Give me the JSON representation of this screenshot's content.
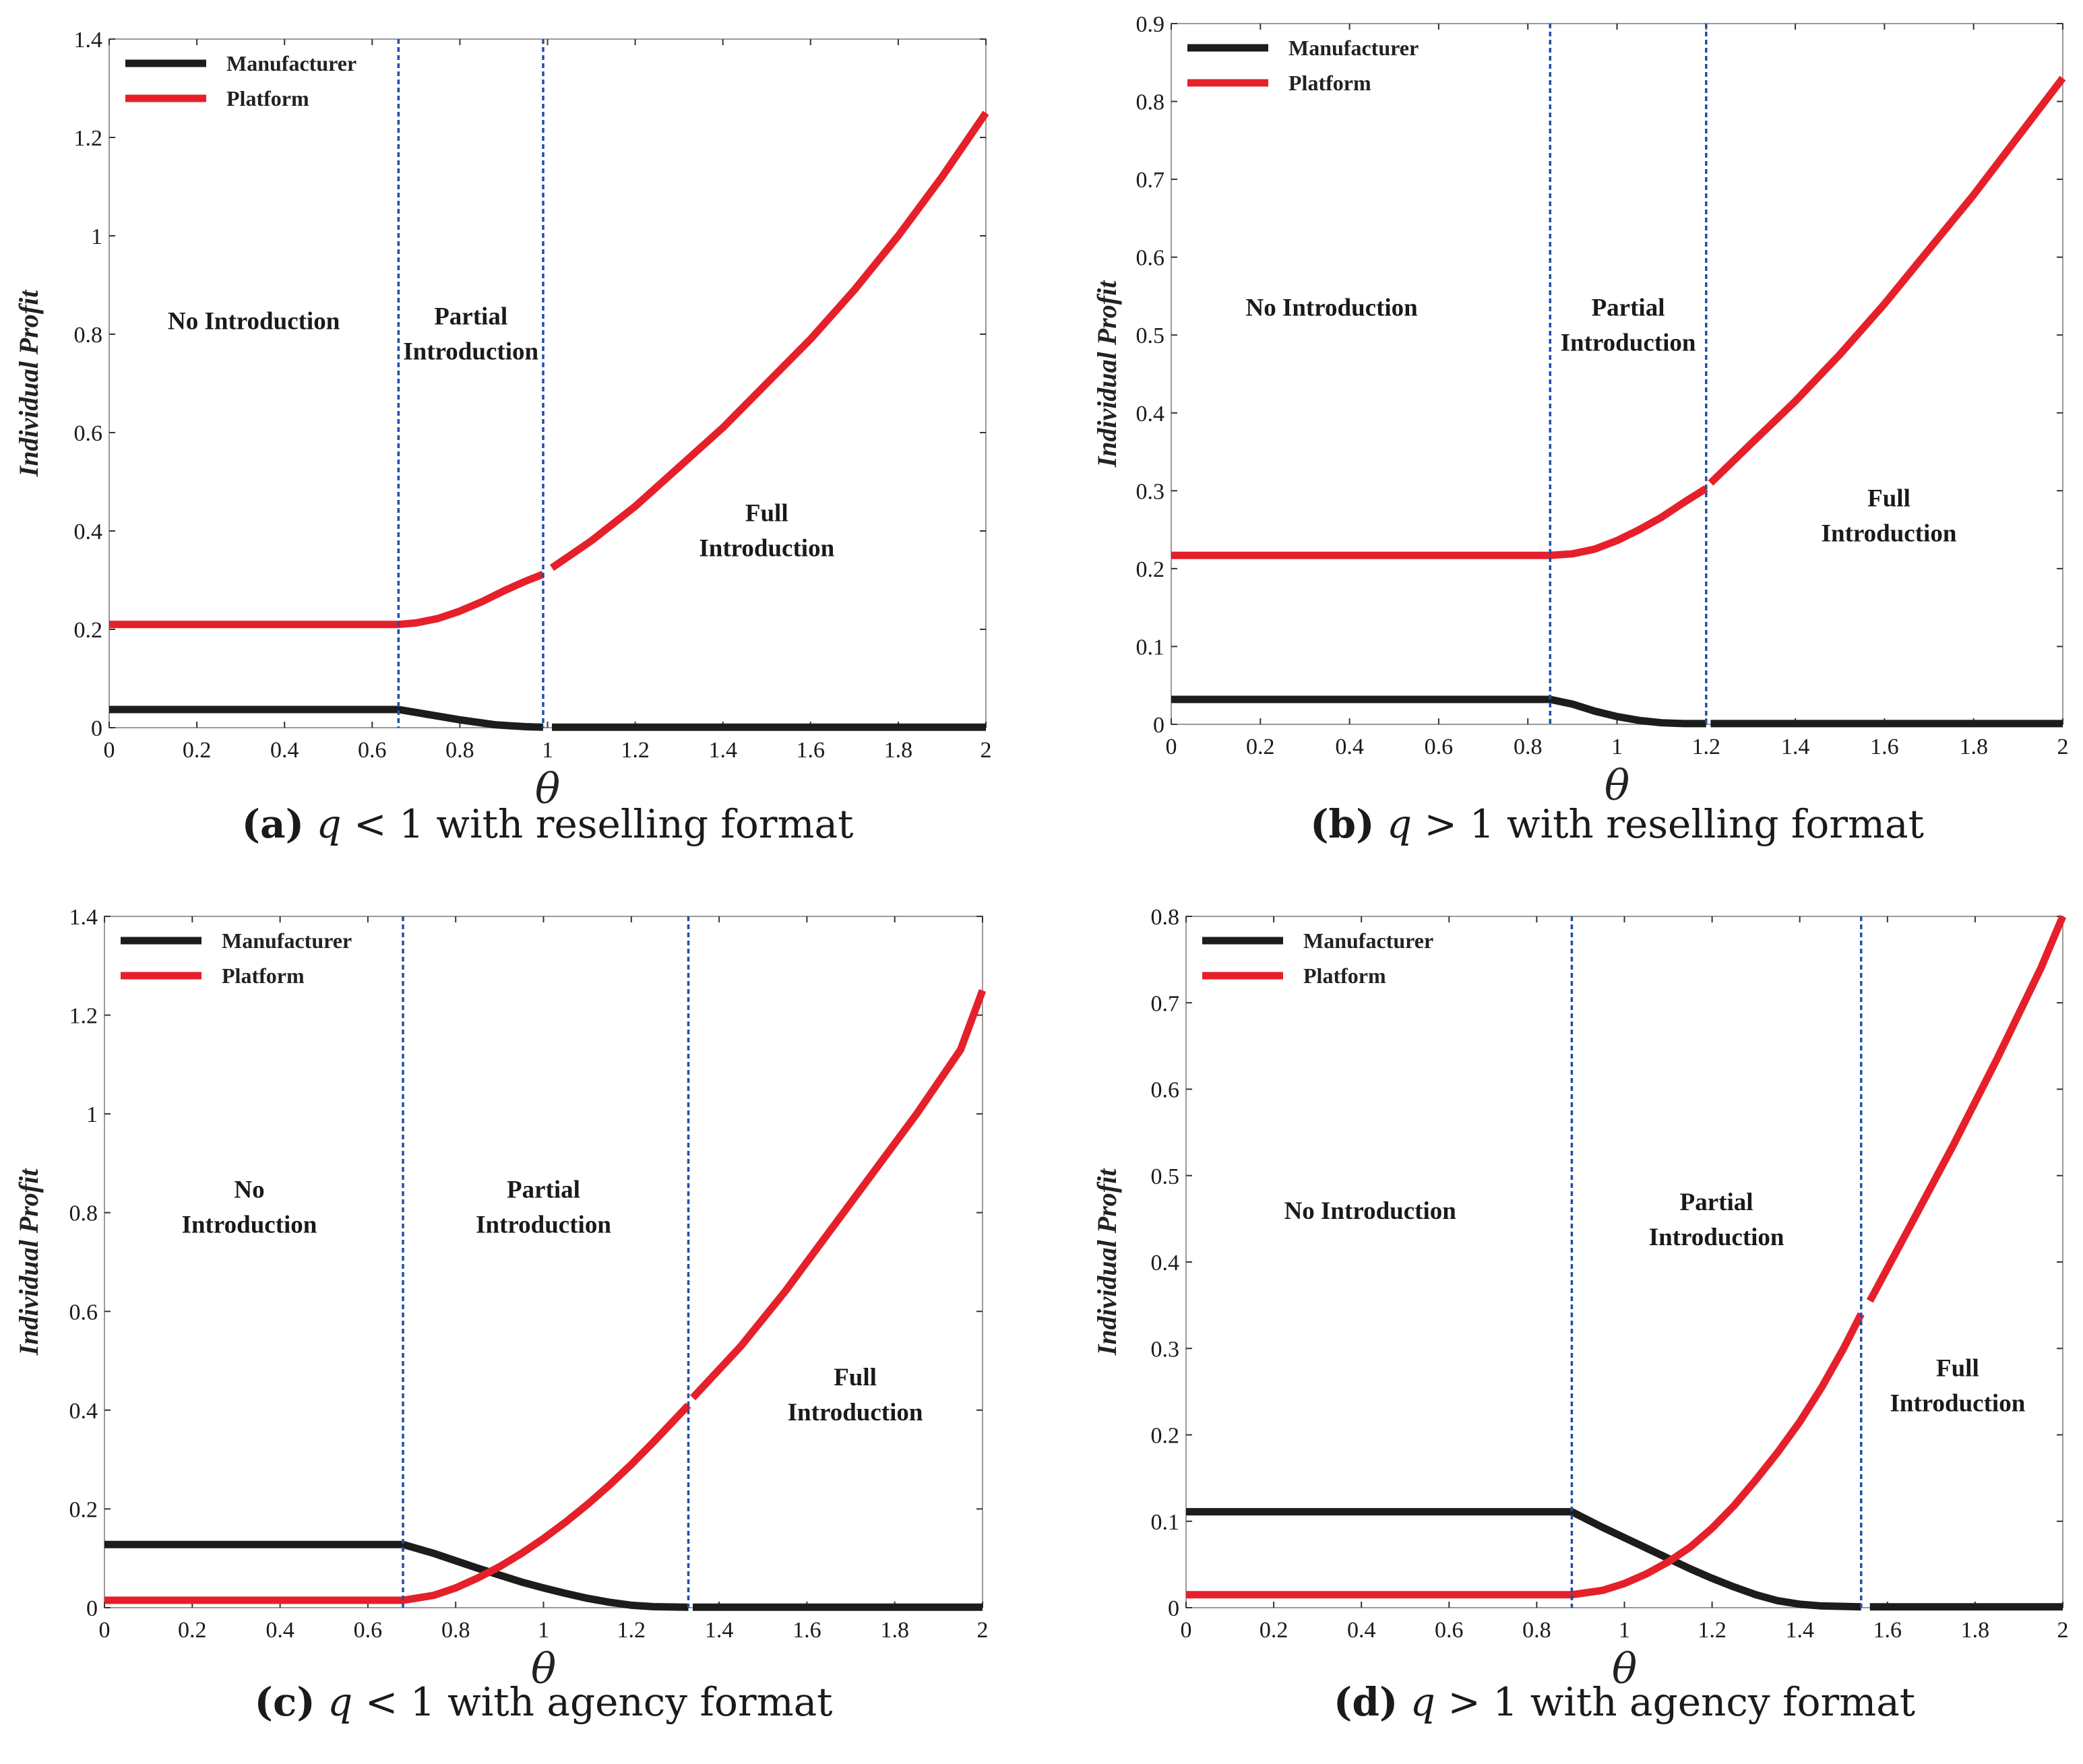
{
  "figure": {
    "legend_labels": [
      "Manufacturer",
      "Platform"
    ],
    "series_colors": {
      "manufacturer": "#1c1c1c",
      "platform": "#e5202a",
      "boundary": "#1f4fa8"
    },
    "xlabel": "θ",
    "ylabel": "Individual  Profit"
  },
  "chart_data": [
    {
      "id": "a",
      "type": "line",
      "caption": {
        "letter": "(a)",
        "q": "q",
        "relation": "< 1 with reselling format"
      },
      "xlim": [
        0,
        2
      ],
      "ylim": [
        0,
        1.4
      ],
      "xticks": [
        "0",
        "0.2",
        "0.4",
        "0.6",
        "0.8",
        "1",
        "1.2",
        "1.4",
        "1.6",
        "1.8",
        "2"
      ],
      "yticks": [
        "0",
        "0.2",
        "0.4",
        "0.6",
        "0.8",
        "1",
        "1.2",
        "1.4"
      ],
      "boundaries": [
        0.66,
        0.99
      ],
      "regions": [
        {
          "lines": [
            "No Introduction"
          ],
          "x": 0.33,
          "y": 0.81
        },
        {
          "lines": [
            "Partial",
            "Introduction"
          ],
          "x": 0.825,
          "y": 0.82
        },
        {
          "lines": [
            "Full",
            "Introduction"
          ],
          "x": 1.5,
          "y": 0.42
        }
      ],
      "series": [
        {
          "name": "Manufacturer",
          "x": [
            0,
            0.66,
            0.72,
            0.8,
            0.88,
            0.95,
            0.99,
            1.01,
            1.5,
            2.0
          ],
          "y": [
            0.037,
            0.037,
            0.028,
            0.016,
            0.006,
            0.002,
            0.001,
            0.001,
            0.001,
            0.001
          ]
        },
        {
          "name": "Platform",
          "x": [
            0,
            0.66,
            0.7,
            0.75,
            0.8,
            0.85,
            0.9,
            0.95,
            0.99,
            1.01,
            1.1,
            1.2,
            1.3,
            1.4,
            1.5,
            1.6,
            1.7,
            1.8,
            1.9,
            2.0
          ],
          "y": [
            0.21,
            0.21,
            0.213,
            0.222,
            0.237,
            0.256,
            0.278,
            0.298,
            0.312,
            0.325,
            0.38,
            0.45,
            0.53,
            0.61,
            0.7,
            0.79,
            0.89,
            1.0,
            1.12,
            1.25
          ]
        }
      ]
    },
    {
      "id": "b",
      "type": "line",
      "caption": {
        "letter": "(b)",
        "q": "q",
        "relation": "> 1 with reselling format"
      },
      "xlim": [
        0,
        2
      ],
      "ylim": [
        0,
        0.9
      ],
      "xticks": [
        "0",
        "0.2",
        "0.4",
        "0.6",
        "0.8",
        "1",
        "1.2",
        "1.4",
        "1.6",
        "1.8",
        "2"
      ],
      "yticks": [
        "0",
        "0.1",
        "0.2",
        "0.3",
        "0.4",
        "0.5",
        "0.6",
        "0.7",
        "0.8",
        "0.9"
      ],
      "boundaries": [
        0.85,
        1.2
      ],
      "regions": [
        {
          "lines": [
            "No Introduction"
          ],
          "x": 0.36,
          "y": 0.525
        },
        {
          "lines": [
            "Partial",
            "Introduction"
          ],
          "x": 1.025,
          "y": 0.525
        },
        {
          "lines": [
            "Full",
            "Introduction"
          ],
          "x": 1.61,
          "y": 0.28
        }
      ],
      "series": [
        {
          "name": "Manufacturer",
          "x": [
            0,
            0.85,
            0.9,
            0.95,
            1.0,
            1.05,
            1.1,
            1.15,
            1.2,
            1.21,
            1.6,
            2.0
          ],
          "y": [
            0.032,
            0.032,
            0.026,
            0.017,
            0.01,
            0.005,
            0.002,
            0.001,
            0.001,
            0.001,
            0.001,
            0.001
          ]
        },
        {
          "name": "Platform",
          "x": [
            0,
            0.85,
            0.9,
            0.95,
            1.0,
            1.05,
            1.1,
            1.15,
            1.2,
            1.21,
            1.3,
            1.4,
            1.5,
            1.6,
            1.7,
            1.8,
            1.9,
            2.0
          ],
          "y": [
            0.217,
            0.217,
            0.219,
            0.225,
            0.236,
            0.25,
            0.266,
            0.285,
            0.303,
            0.31,
            0.36,
            0.415,
            0.475,
            0.54,
            0.61,
            0.68,
            0.755,
            0.83
          ]
        }
      ]
    },
    {
      "id": "c",
      "type": "line",
      "caption": {
        "letter": "(c)",
        "q": "q",
        "relation": "< 1 with agency format"
      },
      "xlim": [
        0,
        2
      ],
      "ylim": [
        0,
        1.4
      ],
      "xticks": [
        "0",
        "0.2",
        "0.4",
        "0.6",
        "0.8",
        "1",
        "1.2",
        "1.4",
        "1.6",
        "1.8",
        "2"
      ],
      "yticks": [
        "0",
        "0.2",
        "0.4",
        "0.6",
        "0.8",
        "1",
        "1.2",
        "1.4"
      ],
      "boundaries": [
        0.68,
        1.33
      ],
      "regions": [
        {
          "lines": [
            "No",
            "Introduction"
          ],
          "x": 0.33,
          "y": 0.83
        },
        {
          "lines": [
            "Partial",
            "Introduction"
          ],
          "x": 1.0,
          "y": 0.83
        },
        {
          "lines": [
            "Full",
            "Introduction"
          ],
          "x": 1.71,
          "y": 0.45
        }
      ],
      "series": [
        {
          "name": "Manufacturer",
          "x": [
            0,
            0.68,
            0.75,
            0.8,
            0.85,
            0.9,
            0.95,
            1.0,
            1.05,
            1.1,
            1.15,
            1.2,
            1.25,
            1.33,
            1.34,
            1.6,
            2.0
          ],
          "y": [
            0.128,
            0.128,
            0.11,
            0.095,
            0.08,
            0.066,
            0.052,
            0.04,
            0.029,
            0.019,
            0.011,
            0.005,
            0.002,
            0.001,
            0.001,
            0.001,
            0.001
          ]
        },
        {
          "name": "Platform",
          "x": [
            0,
            0.68,
            0.75,
            0.8,
            0.85,
            0.9,
            0.95,
            1.0,
            1.05,
            1.1,
            1.15,
            1.2,
            1.25,
            1.33,
            1.34,
            1.45,
            1.55,
            1.65,
            1.75,
            1.85,
            1.95,
            2.0
          ],
          "y": [
            0.015,
            0.015,
            0.025,
            0.04,
            0.06,
            0.083,
            0.11,
            0.14,
            0.173,
            0.209,
            0.248,
            0.29,
            0.335,
            0.41,
            0.425,
            0.53,
            0.64,
            0.76,
            0.88,
            1.0,
            1.13,
            1.25
          ]
        }
      ]
    },
    {
      "id": "d",
      "type": "line",
      "caption": {
        "letter": "(d)",
        "q": "q",
        "relation": "> 1 with agency format"
      },
      "xlim": [
        0,
        2
      ],
      "ylim": [
        0,
        0.8
      ],
      "xticks": [
        "0",
        "0.2",
        "0.4",
        "0.6",
        "0.8",
        "1",
        "1.2",
        "1.4",
        "1.6",
        "1.8",
        "2"
      ],
      "yticks": [
        "0",
        "0.1",
        "0.2",
        "0.3",
        "0.4",
        "0.5",
        "0.6",
        "0.7",
        "0.8"
      ],
      "boundaries": [
        0.88,
        1.54
      ],
      "regions": [
        {
          "lines": [
            "No Introduction"
          ],
          "x": 0.42,
          "y": 0.45
        },
        {
          "lines": [
            "Partial",
            "Introduction"
          ],
          "x": 1.21,
          "y": 0.46
        },
        {
          "lines": [
            "Full",
            "Introduction"
          ],
          "x": 1.76,
          "y": 0.268
        }
      ],
      "series": [
        {
          "name": "Manufacturer",
          "x": [
            0,
            0.88,
            0.95,
            1.0,
            1.05,
            1.1,
            1.15,
            1.2,
            1.25,
            1.3,
            1.35,
            1.4,
            1.45,
            1.54,
            1.56,
            1.8,
            2.0
          ],
          "y": [
            0.111,
            0.111,
            0.093,
            0.081,
            0.069,
            0.057,
            0.045,
            0.034,
            0.024,
            0.015,
            0.008,
            0.004,
            0.002,
            0.001,
            0.001,
            0.001,
            0.001
          ]
        },
        {
          "name": "Platform",
          "x": [
            0,
            0.88,
            0.95,
            1.0,
            1.05,
            1.1,
            1.15,
            1.2,
            1.25,
            1.3,
            1.35,
            1.4,
            1.45,
            1.5,
            1.54,
            1.56,
            1.65,
            1.75,
            1.85,
            1.95,
            2.0
          ],
          "y": [
            0.015,
            0.015,
            0.02,
            0.028,
            0.039,
            0.053,
            0.07,
            0.092,
            0.118,
            0.148,
            0.18,
            0.215,
            0.255,
            0.3,
            0.34,
            0.355,
            0.44,
            0.535,
            0.635,
            0.74,
            0.8
          ]
        }
      ]
    }
  ]
}
